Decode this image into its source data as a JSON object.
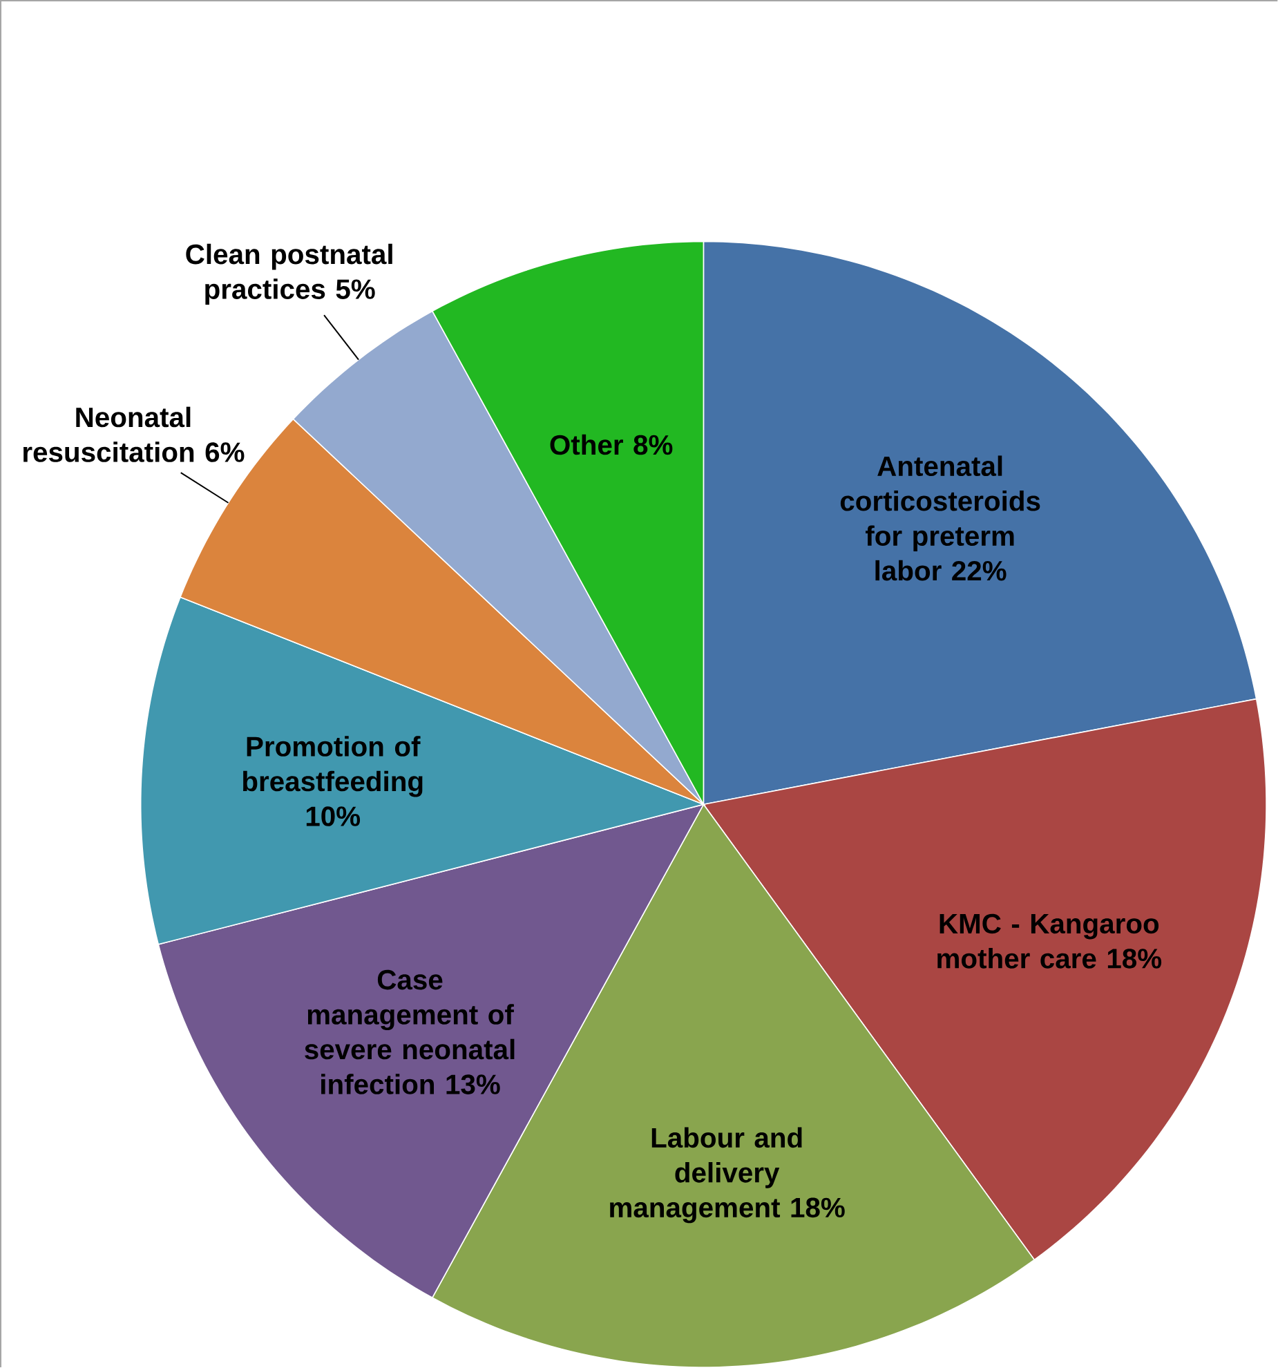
{
  "chart_data": {
    "type": "pie",
    "categories": [
      "Antenatal corticosteroids for preterm labor",
      "KMC - Kangaroo mother care",
      "Labour and delivery management",
      "Case management of severe neonatal infection",
      "Promotion of breastfeeding",
      "Neonatal resuscitation",
      "Clean postnatal practices",
      "Other"
    ],
    "values": [
      22,
      18,
      18,
      13,
      10,
      6,
      5,
      8
    ],
    "value_labels": [
      "22%",
      "18%",
      "18%",
      "13%",
      "10%",
      "6%",
      "5%",
      "8%"
    ],
    "colors": [
      "#4572a7",
      "#aa4643",
      "#89a54e",
      "#71588f",
      "#4198af",
      "#db843d",
      "#93a9cf",
      "#22b822"
    ]
  }
}
